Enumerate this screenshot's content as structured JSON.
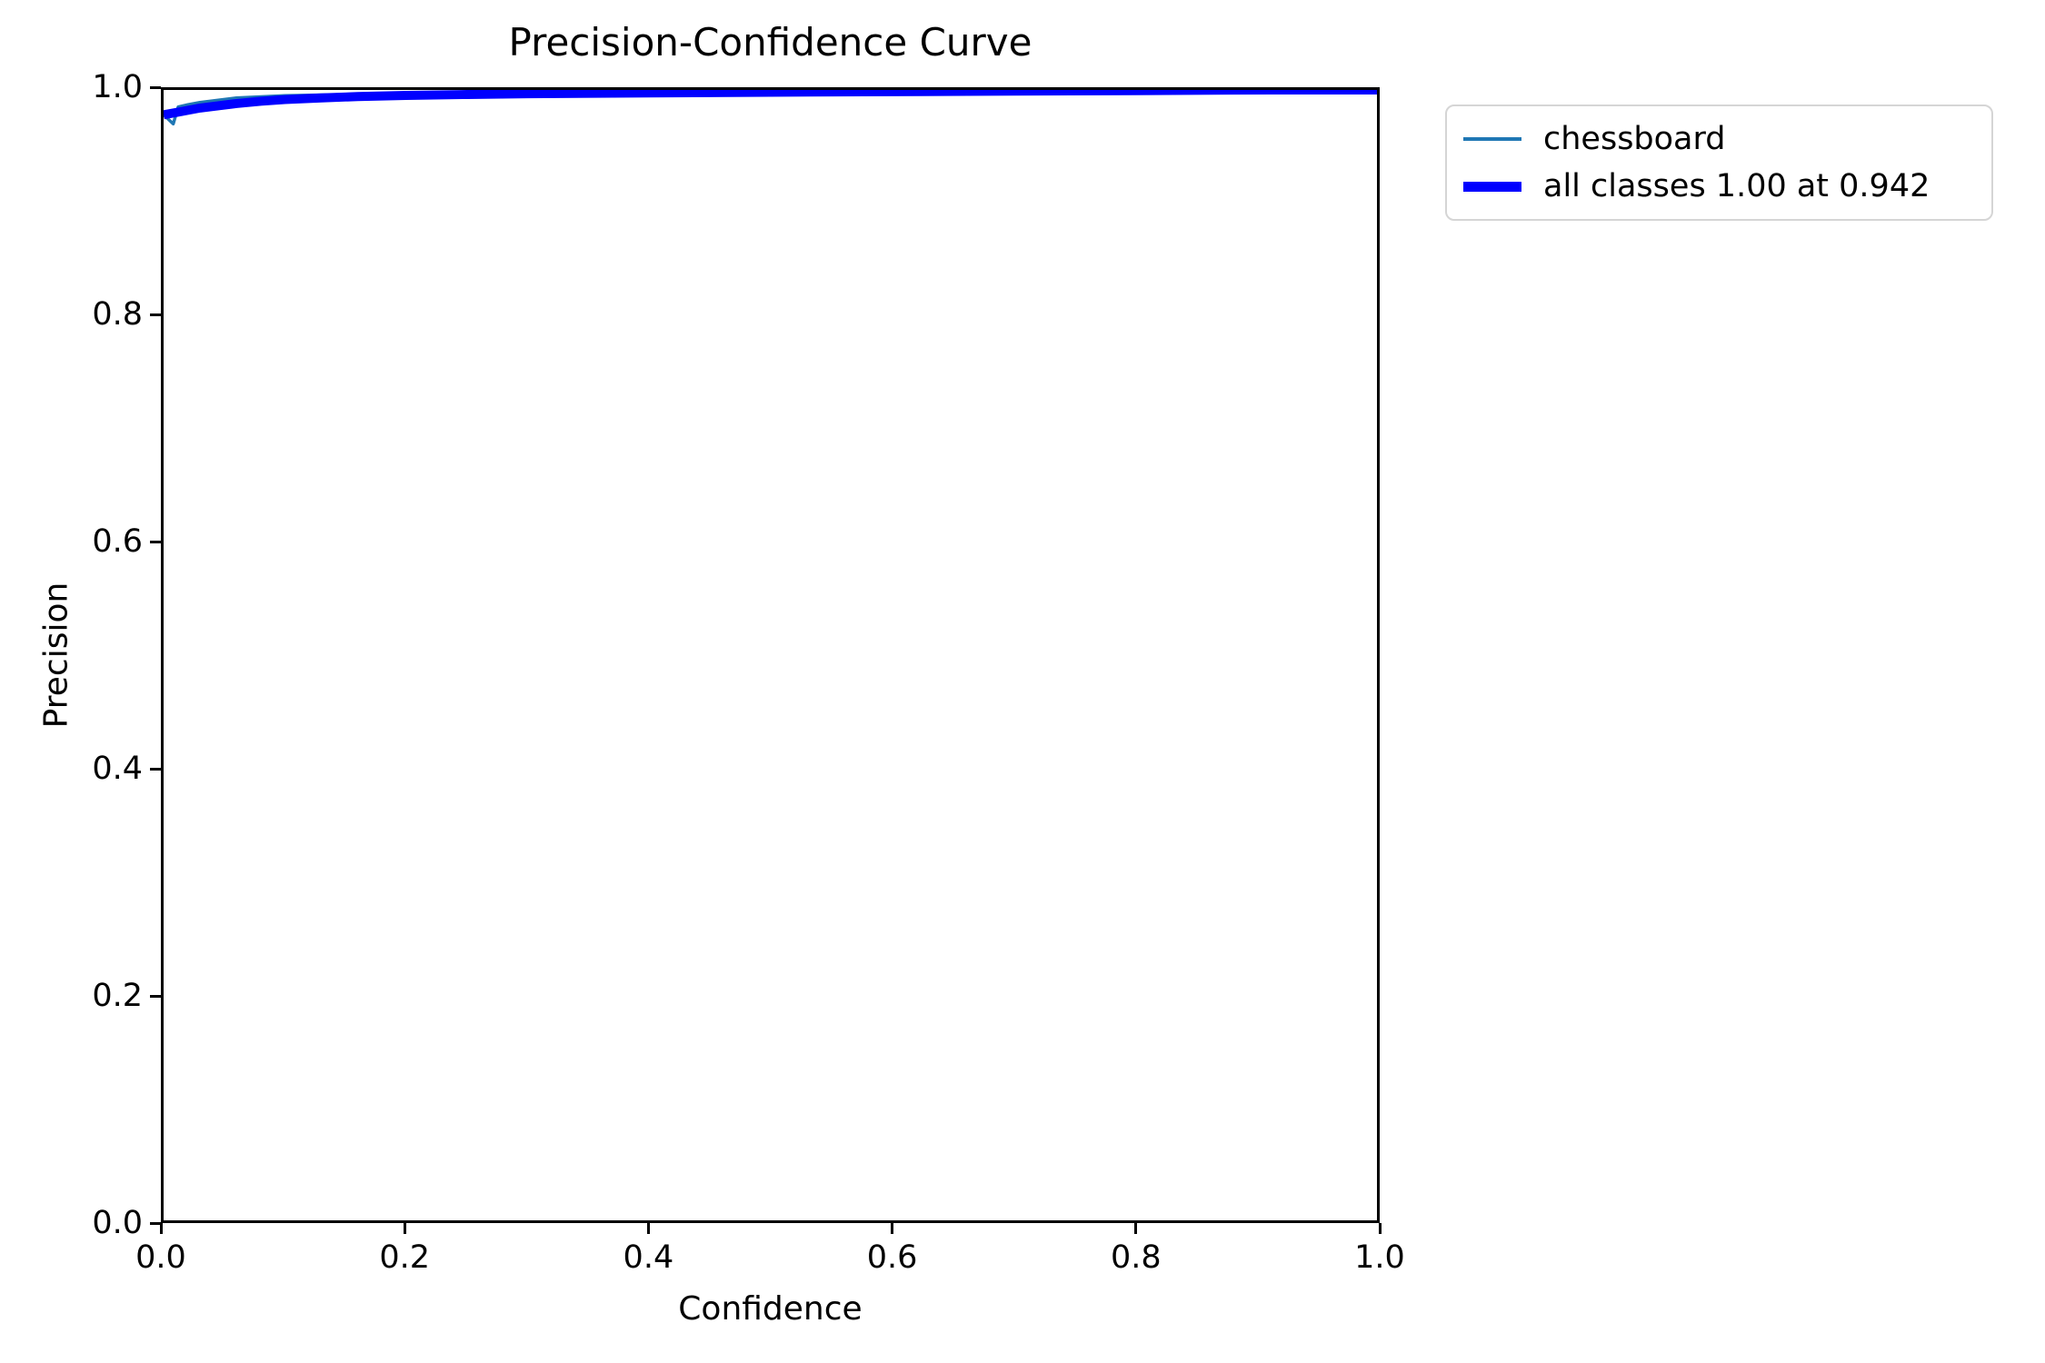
{
  "chart": {
    "title": "Precision-Confidence Curve",
    "xlabel": "Confidence",
    "ylabel": "Precision"
  },
  "legend": {
    "items": [
      {
        "label": "chessboard",
        "color": "#1f77b4",
        "thickness": 4
      },
      {
        "label": "all classes 1.00 at 0.942",
        "color": "#0000ff",
        "thickness": 11
      }
    ]
  },
  "colors": {
    "spine": "#000000",
    "background": "#ffffff",
    "class_line": "#1f77b4",
    "all_classes_line": "#0000ff",
    "legend_border": "#d5d5d5"
  },
  "chart_data": {
    "type": "line",
    "title": "Precision-Confidence Curve",
    "xlabel": "Confidence",
    "ylabel": "Precision",
    "xlim": [
      0,
      1
    ],
    "ylim": [
      0,
      1
    ],
    "x_ticks": [
      "0.0",
      "0.2",
      "0.4",
      "0.6",
      "0.8",
      "1.0"
    ],
    "y_ticks": [
      "0.0",
      "0.2",
      "0.4",
      "0.6",
      "0.8",
      "1.0"
    ],
    "grid": false,
    "legend_position": "outside-upper-right",
    "max_precision_label": "1.00",
    "at_confidence_label": "0.942",
    "series": [
      {
        "name": "chessboard",
        "color": "#1f77b4",
        "linewidth": 3.5,
        "x": [
          0.0,
          0.004,
          0.008,
          0.012,
          0.02,
          0.03,
          0.045,
          0.06,
          0.08,
          0.1,
          0.13,
          0.16,
          0.2,
          0.25,
          0.3,
          0.4,
          0.5,
          0.6,
          0.7,
          0.8,
          0.88,
          0.942,
          1.0
        ],
        "y": [
          0.978,
          0.974,
          0.97,
          0.985,
          0.987,
          0.989,
          0.991,
          0.993,
          0.994,
          0.995,
          0.9956,
          0.9962,
          0.9966,
          0.997,
          0.9974,
          0.9979,
          0.9984,
          0.9988,
          0.9992,
          0.9996,
          1.0,
          1.0,
          1.0
        ]
      },
      {
        "name": "all classes 1.00 at 0.942",
        "color": "#0000ff",
        "linewidth": 10,
        "x": [
          0.0,
          0.01,
          0.02,
          0.03,
          0.045,
          0.06,
          0.08,
          0.1,
          0.13,
          0.16,
          0.2,
          0.25,
          0.3,
          0.4,
          0.5,
          0.6,
          0.7,
          0.8,
          0.88,
          0.942,
          1.0
        ],
        "y": [
          0.978,
          0.98,
          0.982,
          0.984,
          0.986,
          0.988,
          0.99,
          0.9915,
          0.993,
          0.9942,
          0.9952,
          0.996,
          0.9966,
          0.9974,
          0.998,
          0.9985,
          0.999,
          0.9994,
          0.9999,
          1.0,
          1.0
        ]
      }
    ]
  }
}
